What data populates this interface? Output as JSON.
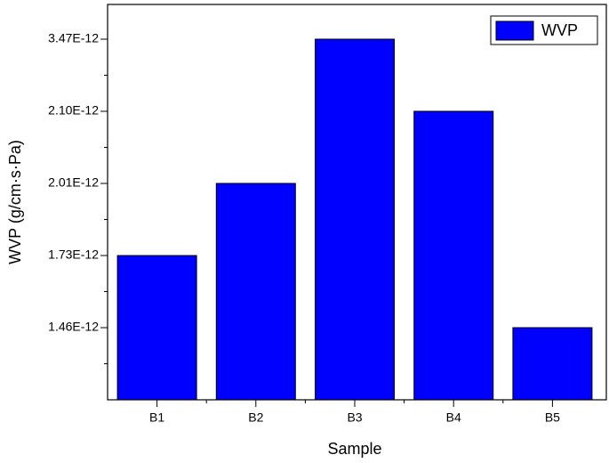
{
  "chart_data": {
    "type": "bar",
    "xlabel": "Sample",
    "ylabel": "WVP (g/cm·s·Pa)",
    "categories": [
      "B1",
      "B2",
      "B3",
      "B4",
      "B5"
    ],
    "series": [
      {
        "name": "WVP",
        "color": "#0000ff",
        "values": [
          1.73e-12,
          2.01e-12,
          3.47e-12,
          2.1e-12,
          1.46e-12
        ]
      }
    ],
    "ylim": [
      1.19e-12,
      4.1e-12
    ],
    "yticks": [
      {
        "value": 1.46e-12,
        "label": "1.46E-12"
      },
      {
        "value": 1.73e-12,
        "label": "1.73E-12"
      },
      {
        "value": 2.01e-12,
        "label": "2.01E-12"
      },
      {
        "value": 2.1e-12,
        "label": "2.10E-12"
      },
      {
        "value": 3.47e-12,
        "label": "3.47E-12"
      }
    ],
    "legend": "top-right",
    "grid": false
  }
}
